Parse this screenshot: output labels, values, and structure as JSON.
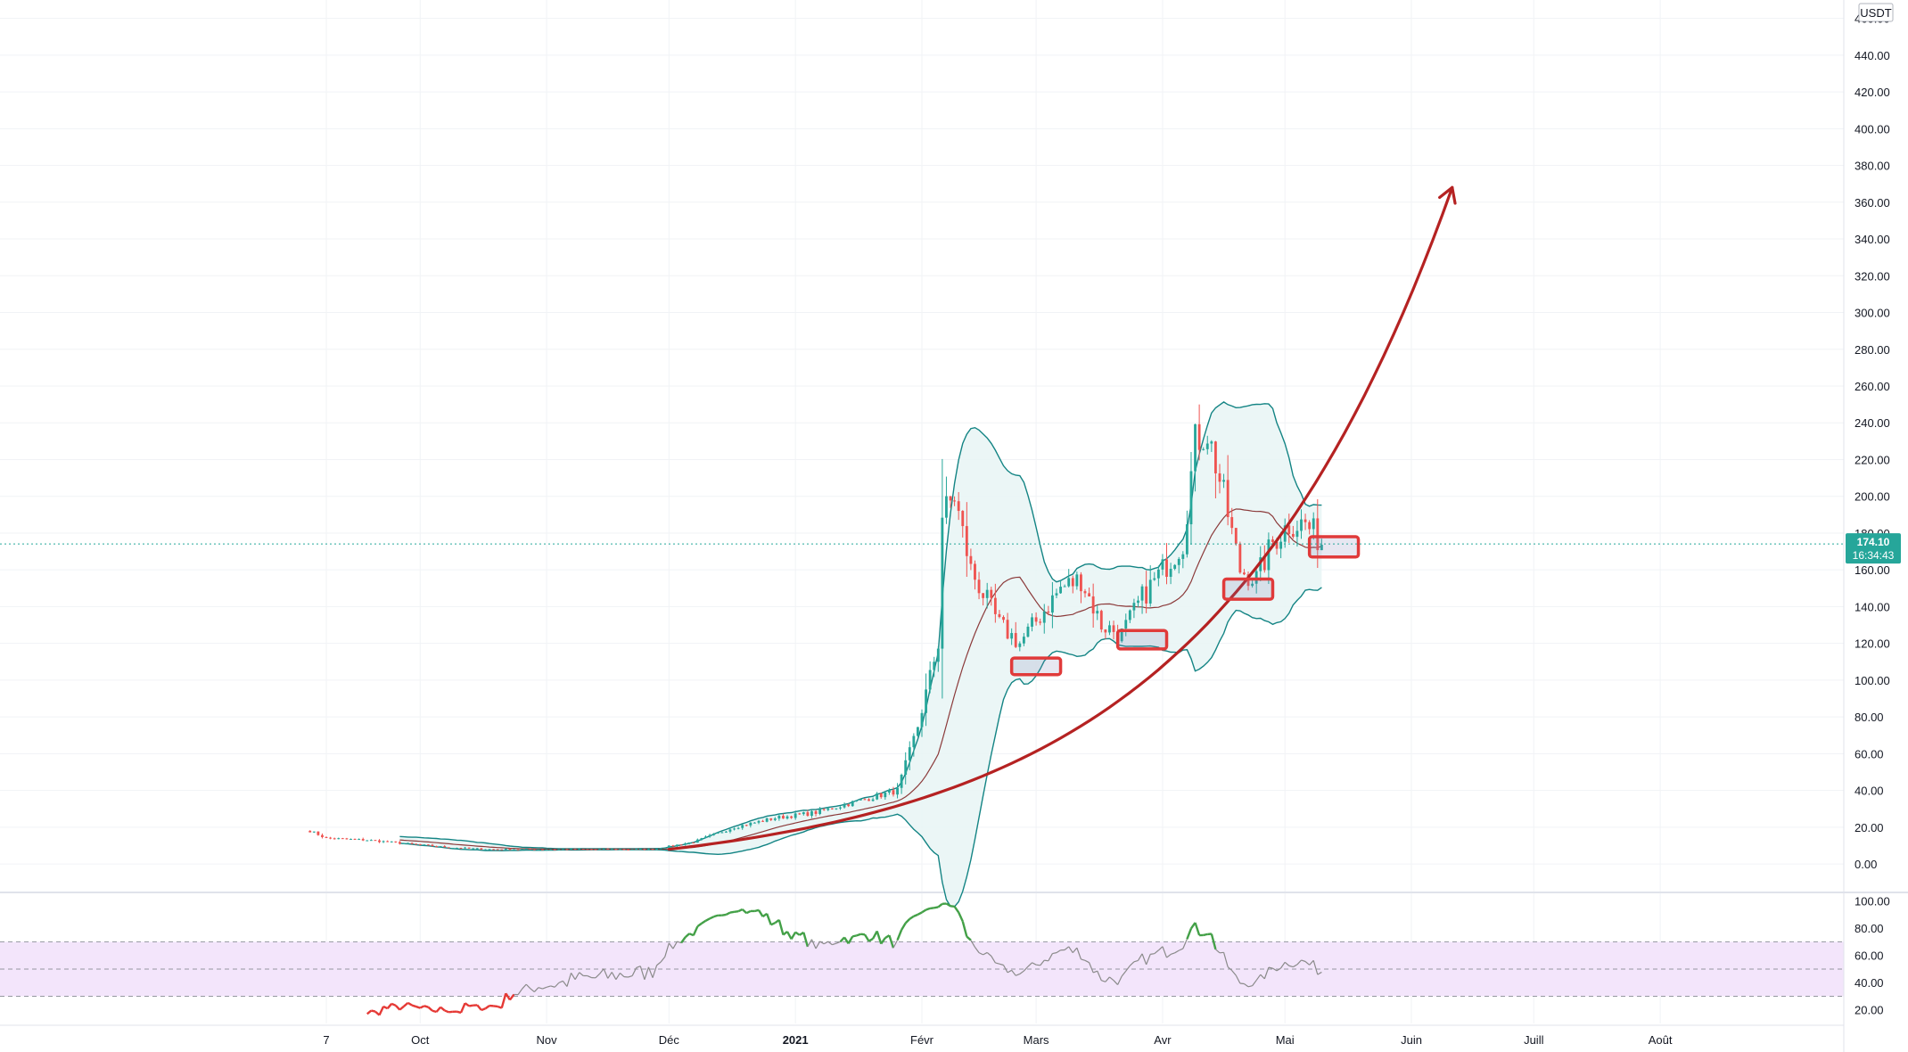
{
  "chart_data": {
    "type": "candlestick",
    "currency_label": "USDT",
    "price_axis": {
      "ticks": [
        "460.00",
        "440.00",
        "420.00",
        "400.00",
        "380.00",
        "360.00",
        "340.00",
        "320.00",
        "300.00",
        "280.00",
        "260.00",
        "240.00",
        "220.00",
        "200.00",
        "180.00",
        "160.00",
        "140.00",
        "120.00",
        "100.00",
        "80.00",
        "60.00",
        "40.00",
        "20.00",
        "0.00"
      ],
      "ylim": [
        -15,
        470
      ]
    },
    "rsi_axis": {
      "ticks": [
        "100.00",
        "80.00",
        "60.00",
        "40.00",
        "20.00"
      ],
      "ylim": [
        10,
        105
      ],
      "bands": {
        "upper": 70,
        "mid": 50,
        "lower": 30
      }
    },
    "time_axis": {
      "labels": [
        "7",
        "Oct",
        "Nov",
        "Déc",
        "2021",
        "Févr",
        "Mars",
        "Avr",
        "Mai",
        "Juin",
        "Juill",
        "Août"
      ],
      "label_days": [
        0,
        23,
        54,
        84,
        115,
        146,
        174,
        205,
        235,
        266,
        296,
        327
      ],
      "bold_label": "2021",
      "xlim_days": [
        -80,
        372
      ]
    },
    "current_price": {
      "value": 174.1,
      "label": "174.10",
      "countdown": "16:34:43"
    },
    "price_path": [
      [
        -4,
        18
      ],
      [
        0,
        14
      ],
      [
        10,
        13
      ],
      [
        20,
        11
      ],
      [
        30,
        9
      ],
      [
        40,
        8
      ],
      [
        60,
        8
      ],
      [
        80,
        8
      ],
      [
        90,
        12
      ],
      [
        100,
        20
      ],
      [
        110,
        25
      ],
      [
        120,
        28
      ],
      [
        130,
        34
      ],
      [
        140,
        40
      ],
      [
        145,
        75
      ],
      [
        150,
        120
      ],
      [
        151,
        190
      ],
      [
        154,
        200
      ],
      [
        158,
        160
      ],
      [
        165,
        130
      ],
      [
        170,
        120
      ],
      [
        175,
        135
      ],
      [
        180,
        150
      ],
      [
        185,
        155
      ],
      [
        190,
        130
      ],
      [
        195,
        125
      ],
      [
        200,
        145
      ],
      [
        205,
        160
      ],
      [
        210,
        175
      ],
      [
        213,
        230
      ],
      [
        216,
        235
      ],
      [
        220,
        200
      ],
      [
        224,
        160
      ],
      [
        228,
        155
      ],
      [
        232,
        175
      ],
      [
        236,
        185
      ],
      [
        240,
        185
      ],
      [
        244,
        175
      ]
    ],
    "bollinger_start_day": 18,
    "bollinger_window": 20,
    "rsi_period": 14,
    "trend_curve": {
      "start": [
        84,
        8
      ],
      "end": [
        276,
        368
      ]
    },
    "highlight_boxes": [
      {
        "days": [
          168,
          180
        ],
        "price": [
          103,
          112
        ]
      },
      {
        "days": [
          194,
          206
        ],
        "price": [
          117,
          127
        ]
      },
      {
        "days": [
          220,
          232
        ],
        "price": [
          144,
          155
        ]
      },
      {
        "days": [
          241,
          253
        ],
        "price": [
          167,
          178
        ]
      }
    ],
    "colors": {
      "up": "#26a69a",
      "down": "#ef5350",
      "wick": "#787b86",
      "bb_band": "#138484",
      "bb_fill": "#e8f5f4",
      "bb_mid": "#8b3a3a",
      "trend": "#b52222",
      "box": "#e03a3a",
      "rsi_line": "#8a8a8a",
      "rsi_hi": "#43a047",
      "rsi_lo": "#e53935",
      "rsi_band": "#f3e5fb",
      "grid": "#f1f3f6",
      "tag": "#26a69a"
    }
  }
}
